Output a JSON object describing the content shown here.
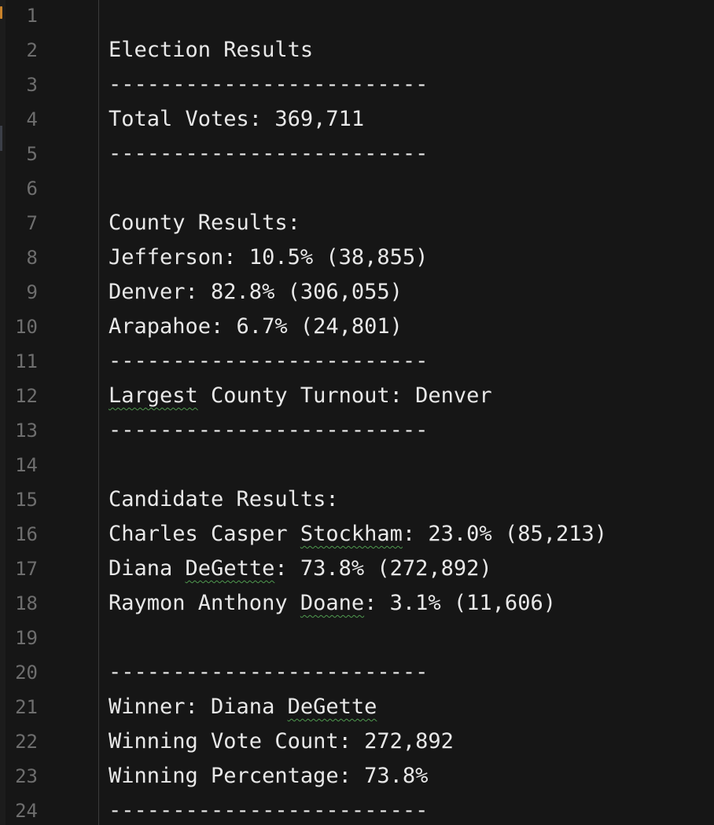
{
  "editor": {
    "lines": [
      {
        "n": "1",
        "text": ""
      },
      {
        "n": "2",
        "text": "Election Results"
      },
      {
        "n": "3",
        "text": "-------------------------"
      },
      {
        "n": "4",
        "text": "Total Votes: 369,711"
      },
      {
        "n": "5",
        "text": "-------------------------"
      },
      {
        "n": "6",
        "text": ""
      },
      {
        "n": "7",
        "text": "County Results:"
      },
      {
        "n": "8",
        "text": "Jefferson: 10.5% (38,855)"
      },
      {
        "n": "9",
        "text": "Denver: 82.8% (306,055)"
      },
      {
        "n": "10",
        "text": "Arapahoe: 6.7% (24,801)"
      },
      {
        "n": "11",
        "text": "-------------------------"
      },
      {
        "n": "12",
        "pre": "",
        "flag": "Largest",
        "post": " County Turnout: Denver"
      },
      {
        "n": "13",
        "text": "-------------------------"
      },
      {
        "n": "14",
        "text": ""
      },
      {
        "n": "15",
        "text": "Candidate Results:"
      },
      {
        "n": "16",
        "pre": "Charles Casper ",
        "flag": "Stockham",
        "post": ": 23.0% (85,213)"
      },
      {
        "n": "17",
        "pre": "Diana ",
        "flag": "DeGette",
        "post": ": 73.8% (272,892)"
      },
      {
        "n": "18",
        "pre": "Raymon Anthony ",
        "flag": "Doane",
        "post": ": 3.1% (11,606)"
      },
      {
        "n": "19",
        "text": ""
      },
      {
        "n": "20",
        "text": "-------------------------"
      },
      {
        "n": "21",
        "pre": "Winner: Diana ",
        "flag": "DeGette",
        "post": ""
      },
      {
        "n": "22",
        "text": "Winning Vote Count: 272,892"
      },
      {
        "n": "23",
        "text": "Winning Percentage: 73.8%"
      },
      {
        "n": "24",
        "text": "-------------------------"
      }
    ]
  }
}
